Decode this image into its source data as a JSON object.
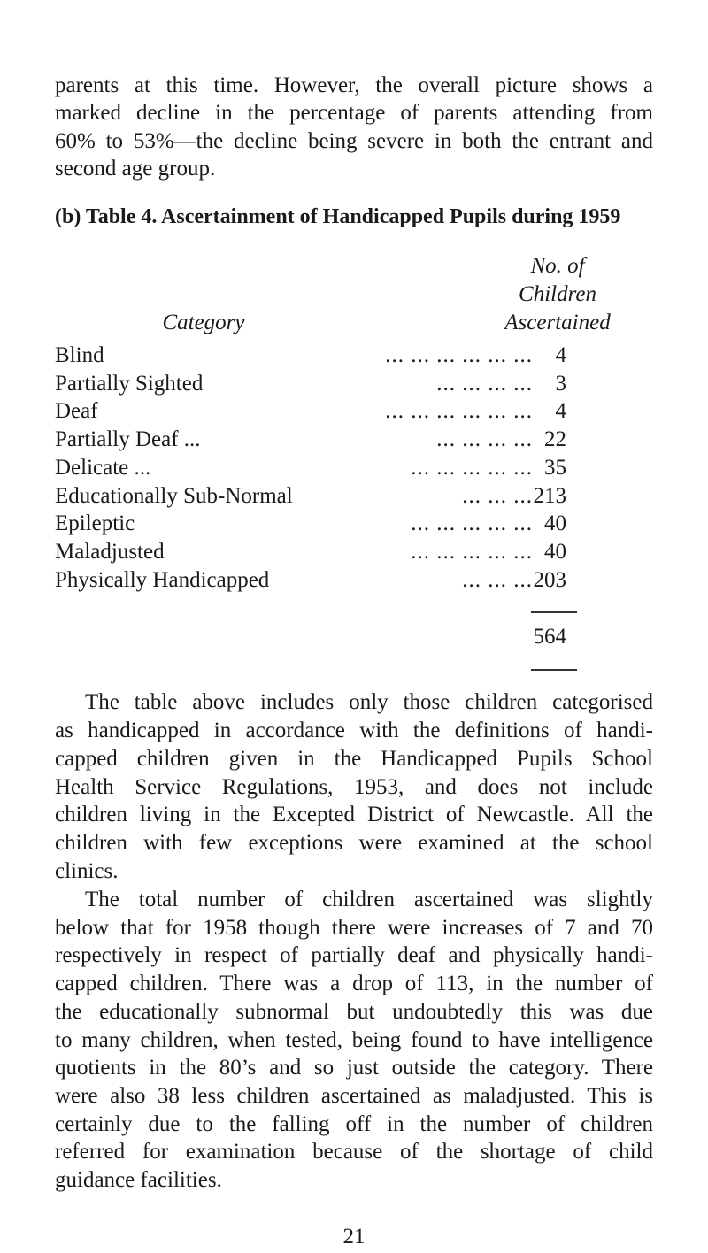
{
  "paragraph1": [
    "parents at this time. However, the overall picture shows a",
    "marked decline in the percentage of parents attending from",
    "60% to 53%—the decline being severe in both the entrant and",
    "second age group."
  ],
  "heading": "(b) Table 4.  Ascertainment of Handicapped Pupils during 1959",
  "table": {
    "col_category": "Category",
    "col_count": [
      "No. of",
      "Children",
      "Ascertained"
    ],
    "rows": [
      {
        "category": "Blind",
        "dots": "...  ...  ...  ...  ...  ...",
        "value": "4"
      },
      {
        "category": "Partially Sighted",
        "dots": "...  ...  ...  ...",
        "value": "3"
      },
      {
        "category": "Deaf",
        "dots": "...  ...  ...  ...  ...  ...",
        "value": "4"
      },
      {
        "category": "Partially Deaf ...",
        "dots": "...  ...  ...  ...",
        "value": "22"
      },
      {
        "category": "Delicate ...",
        "dots": "...  ...  ...  ...  ...",
        "value": "35"
      },
      {
        "category": "Educationally Sub-Normal",
        "dots": "...  ...  ...",
        "value": "213"
      },
      {
        "category": "Epileptic",
        "dots": "...  ...  ...  ...  ...",
        "value": "40"
      },
      {
        "category": "Maladjusted",
        "dots": "...  ...  ...  ...  ...",
        "value": "40"
      },
      {
        "category": "Physically Handicapped",
        "dots": "...  ...  ...",
        "value": "203"
      }
    ],
    "total": "564"
  },
  "paragraph2": [
    "The table above includes only those children categorised",
    "as handicapped in accordance with the definitions of handi-",
    "capped children given in the Handicapped Pupils School",
    "Health Service Regulations, 1953, and does not include",
    "children living in the Excepted District of Newcastle. All the",
    "children with few exceptions were examined at the school",
    "clinics."
  ],
  "paragraph3": [
    "The total number of children ascertained was slightly",
    "below that for 1958 though there were increases of 7 and 70",
    "respectively in respect of partially deaf and physically handi-",
    "capped children. There was a drop of 113, in the number of",
    "the educationally subnormal but undoubtedly this was due",
    "to many children, when tested, being found to have intelligence",
    "quotients in the 80’s and so just outside the category. There",
    "were also 38 less children ascertained as maladjusted. This is",
    "certainly due to the falling off in the number of children",
    "referred for examination because of the shortage of child",
    "guidance facilities."
  ],
  "page_number": "21"
}
